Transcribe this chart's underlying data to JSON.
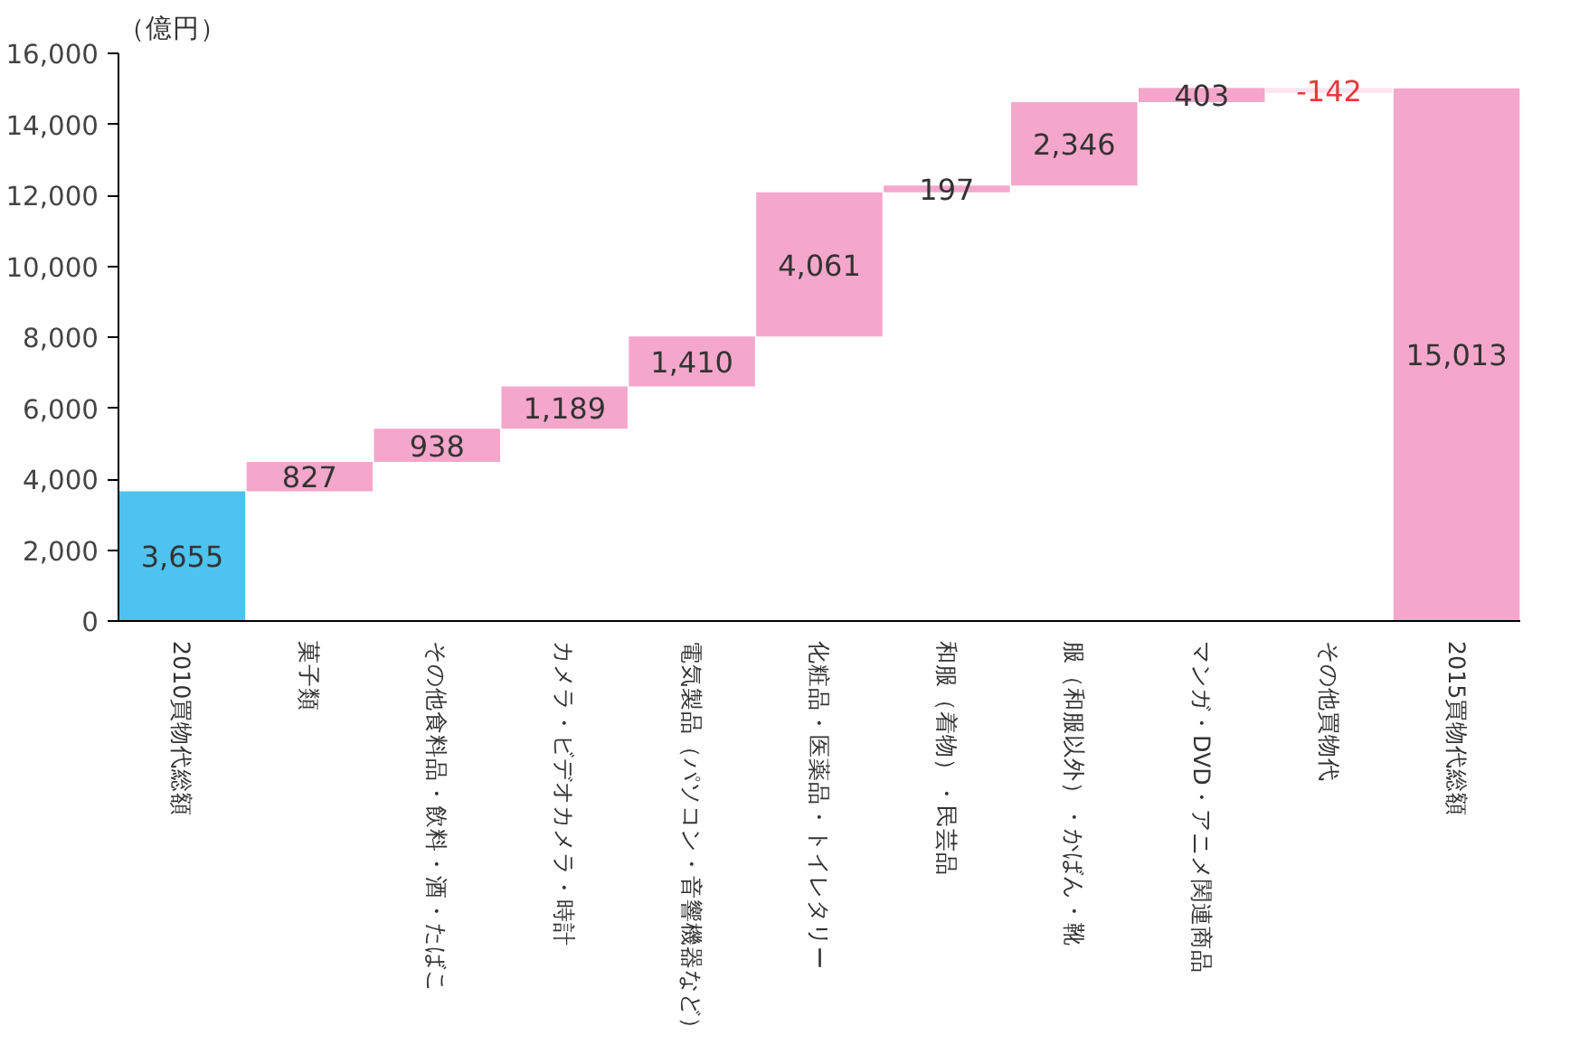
{
  "chart_data": {
    "type": "bar",
    "ylabel": "（億円）",
    "categories": [
      "2010買物代総額",
      "菓子類",
      "その他食料品・飲料・酒・たばこ",
      "カメラ・ビデオカメラ・時計",
      "電気製品（パソコン・音響機器など）",
      "化粧品・医薬品・トイレタリー",
      "和服（着物）・民芸品",
      "服（和服以外）・かばん・靴",
      "マンガ・DVD・アニメ関連商品",
      "その他買物代",
      "2015買物代総額"
    ],
    "values": [
      3655,
      827,
      938,
      1189,
      1410,
      4061,
      197,
      2346,
      403,
      -142,
      15013
    ],
    "base": [
      0,
      3655,
      4482,
      5420,
      6609,
      8019,
      12080,
      12277,
      14623,
      15026,
      0
    ],
    "colors": [
      "#4ec3ef",
      "#f5a7cb",
      "#f5a7cb",
      "#f5a7cb",
      "#f5a7cb",
      "#f5a7cb",
      "#f5a7cb",
      "#f5a7cb",
      "#f5a7cb",
      "#fde3ee",
      "#f5a7cb"
    ],
    "value_labels": [
      "3,655",
      "827",
      "938",
      "1,189",
      "1,410",
      "4,061",
      "197",
      "2,346",
      "403",
      "-142",
      "15,013"
    ],
    "ylim": [
      0,
      16000
    ],
    "yticks": [
      {
        "value": 0,
        "label": "0"
      },
      {
        "value": 2000,
        "label": "2,000"
      },
      {
        "value": 4000,
        "label": "4,000"
      },
      {
        "value": 6000,
        "label": "6,000"
      },
      {
        "value": 8000,
        "label": "8,000"
      },
      {
        "value": 10000,
        "label": "10,000"
      },
      {
        "value": 12000,
        "label": "12,000"
      },
      {
        "value": 14000,
        "label": "14,000"
      },
      {
        "value": 16000,
        "label": "16,000"
      }
    ],
    "grid": false
  }
}
